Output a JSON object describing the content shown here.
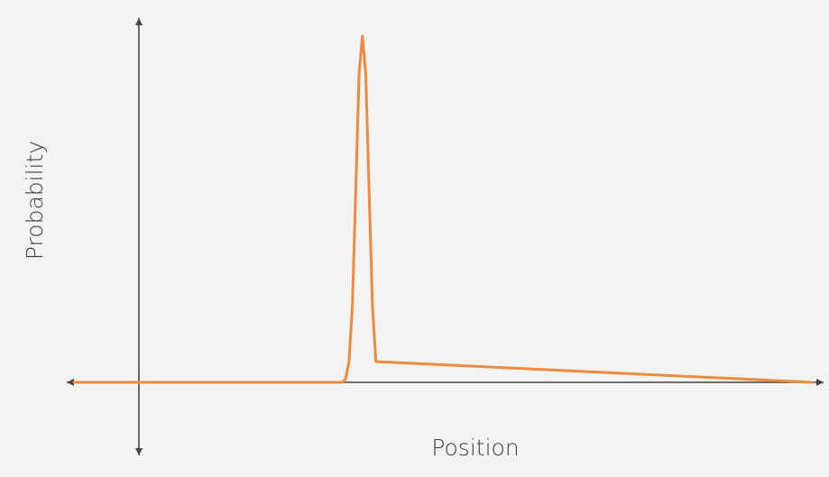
{
  "chart_data": {
    "type": "line",
    "title": "",
    "xlabel": "Position",
    "ylabel": "Probability",
    "grid": false,
    "legend": "none",
    "xlim": [
      -1,
      10
    ],
    "ylim": [
      0,
      1
    ],
    "series": [
      {
        "color": "#f08a3c",
        "x": [
          -1,
          3.0,
          3.05,
          3.1,
          3.15,
          3.2,
          3.25,
          3.3,
          3.35,
          3.4,
          3.45,
          3.5,
          10
        ],
        "y": [
          0,
          0,
          0.01,
          0.06,
          0.22,
          0.55,
          0.89,
          1.0,
          0.89,
          0.55,
          0.22,
          0.06,
          0
        ]
      }
    ]
  },
  "colors": {
    "background": "#f3f3f3",
    "axis": "#444444",
    "curve": "#f08a3c"
  }
}
